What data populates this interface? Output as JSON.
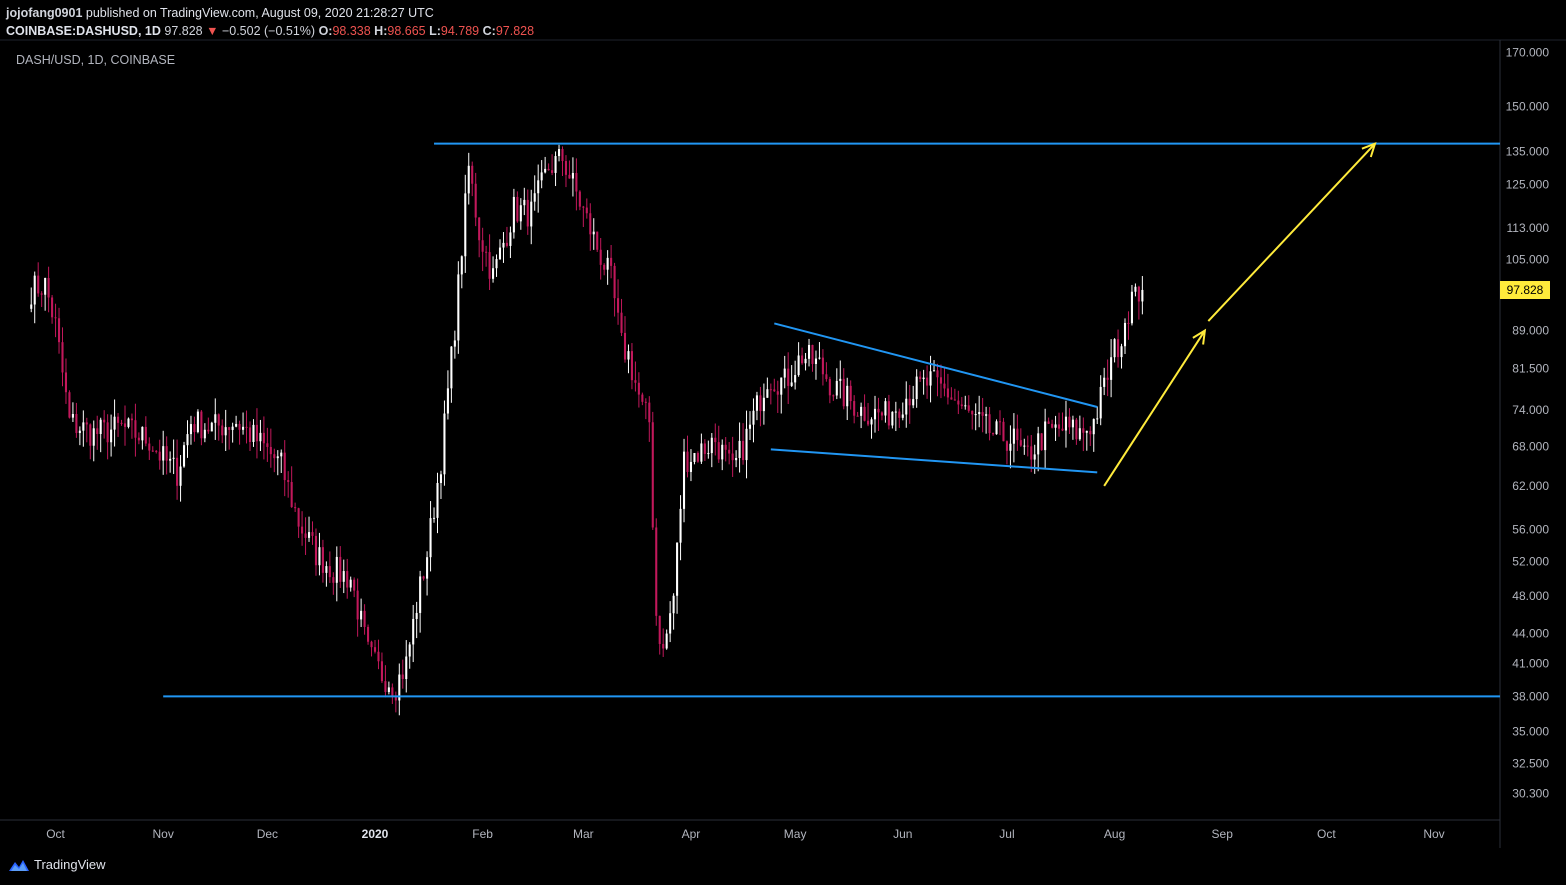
{
  "header": {
    "author": "jojofang0901",
    "published_text": " published on TradingView.com, August 09, 2020 21:28:27 UTC",
    "symbol": "COINBASE:DASHUSD, 1D",
    "last": "97.828",
    "change_arrow": "▼",
    "change": "−0.502 (−0.51%)",
    "o_label": "O:",
    "o_val": "98.338",
    "h_label": "H:",
    "h_val": "98.665",
    "l_label": "L:",
    "l_val": "94.789",
    "c_label": "C:",
    "c_val": "97.828"
  },
  "watermark": "DASH/USD, 1D, COINBASE",
  "brand": "TradingView",
  "colors": {
    "background": "#000000",
    "candle_up": "#ffffff",
    "candle_down": "#c2185b",
    "trendline": "#2196f3",
    "arrow": "#ffeb3b",
    "price_tag": "#ffeb3b",
    "axis_text": "#b2b5be"
  },
  "chart_data": {
    "type": "candlestick",
    "title": "DASH/USD, 1D, COINBASE",
    "y_scale": "log",
    "ylim": [
      28.5,
      175
    ],
    "x_range": [
      "2019-09-15",
      "2020-11-20"
    ],
    "y_ticks": [
      "170.000",
      "150.000",
      "135.000",
      "125.000",
      "113.000",
      "105.000",
      "89.000",
      "81.500",
      "74.000",
      "68.000",
      "62.000",
      "56.000",
      "52.000",
      "48.000",
      "44.000",
      "41.000",
      "38.000",
      "35.000",
      "32.500",
      "30.300"
    ],
    "x_ticks": [
      {
        "label": "Oct",
        "date": "2019-10-01",
        "bold": false
      },
      {
        "label": "Nov",
        "date": "2019-11-01",
        "bold": false
      },
      {
        "label": "Dec",
        "date": "2019-12-01",
        "bold": false
      },
      {
        "label": "2020",
        "date": "2020-01-01",
        "bold": true
      },
      {
        "label": "Feb",
        "date": "2020-02-01",
        "bold": false
      },
      {
        "label": "Mar",
        "date": "2020-03-01",
        "bold": false
      },
      {
        "label": "Apr",
        "date": "2020-04-01",
        "bold": false
      },
      {
        "label": "May",
        "date": "2020-05-01",
        "bold": false
      },
      {
        "label": "Jun",
        "date": "2020-06-01",
        "bold": false
      },
      {
        "label": "Jul",
        "date": "2020-07-01",
        "bold": false
      },
      {
        "label": "Aug",
        "date": "2020-08-01",
        "bold": false
      },
      {
        "label": "Sep",
        "date": "2020-09-01",
        "bold": false
      },
      {
        "label": "Oct",
        "date": "2020-10-01",
        "bold": false
      },
      {
        "label": "Nov",
        "date": "2020-11-01",
        "bold": false
      }
    ],
    "last_price": "97.828",
    "close_series": {
      "start": "2019-09-24",
      "anchors": [
        [
          "2019-09-24",
          98
        ],
        [
          "2019-09-28",
          99
        ],
        [
          "2019-10-01",
          90
        ],
        [
          "2019-10-05",
          72
        ],
        [
          "2019-10-12",
          70
        ],
        [
          "2019-10-20",
          71
        ],
        [
          "2019-10-28",
          69
        ],
        [
          "2019-11-01",
          66
        ],
        [
          "2019-11-05",
          64
        ],
        [
          "2019-11-09",
          72
        ],
        [
          "2019-11-15",
          71
        ],
        [
          "2019-11-22",
          72
        ],
        [
          "2019-11-28",
          69
        ],
        [
          "2019-12-05",
          65
        ],
        [
          "2019-12-10",
          57
        ],
        [
          "2019-12-15",
          53
        ],
        [
          "2019-12-20",
          51
        ],
        [
          "2019-12-25",
          50
        ],
        [
          "2019-12-30",
          42
        ],
        [
          "2020-01-03",
          40
        ],
        [
          "2020-01-07",
          39
        ],
        [
          "2020-01-10",
          41
        ],
        [
          "2020-01-13",
          47
        ],
        [
          "2020-01-16",
          53
        ],
        [
          "2020-01-20",
          66
        ],
        [
          "2020-01-24",
          90
        ],
        [
          "2020-01-28",
          130
        ],
        [
          "2020-01-31",
          112
        ],
        [
          "2020-02-04",
          101
        ],
        [
          "2020-02-10",
          118
        ],
        [
          "2020-02-15",
          117
        ],
        [
          "2020-02-20",
          130
        ],
        [
          "2020-02-24",
          133
        ],
        [
          "2020-02-29",
          120
        ],
        [
          "2020-03-05",
          108
        ],
        [
          "2020-03-09",
          100
        ],
        [
          "2020-03-12",
          86
        ],
        [
          "2020-03-14",
          84
        ],
        [
          "2020-03-18",
          74
        ],
        [
          "2020-03-20",
          72
        ],
        [
          "2020-03-22",
          46
        ],
        [
          "2020-03-24",
          42
        ],
        [
          "2020-03-27",
          48
        ],
        [
          "2020-03-30",
          66
        ],
        [
          "2020-04-03",
          67
        ],
        [
          "2020-04-08",
          69
        ],
        [
          "2020-04-13",
          64
        ],
        [
          "2020-04-18",
          71
        ],
        [
          "2020-04-23",
          80
        ],
        [
          "2020-04-28",
          79
        ],
        [
          "2020-05-03",
          84
        ],
        [
          "2020-05-08",
          82
        ],
        [
          "2020-05-12",
          78
        ],
        [
          "2020-05-16",
          76
        ],
        [
          "2020-05-20",
          74
        ],
        [
          "2020-05-27",
          73
        ],
        [
          "2020-06-03",
          77
        ],
        [
          "2020-06-09",
          79
        ],
        [
          "2020-06-14",
          77
        ],
        [
          "2020-06-20",
          73
        ],
        [
          "2020-06-27",
          70
        ],
        [
          "2020-07-03",
          69
        ],
        [
          "2020-07-06",
          66
        ],
        [
          "2020-07-12",
          70
        ],
        [
          "2020-07-18",
          71
        ],
        [
          "2020-07-22",
          70
        ],
        [
          "2020-07-26",
          72
        ],
        [
          "2020-07-29",
          78
        ],
        [
          "2020-08-01",
          85
        ],
        [
          "2020-08-04",
          88
        ],
        [
          "2020-08-06",
          100
        ],
        [
          "2020-08-09",
          97.828
        ]
      ]
    },
    "annotations": [
      {
        "kind": "hline",
        "price": 137.5,
        "from": "2020-01-18",
        "to": "2020-11-20",
        "color": "#2196f3"
      },
      {
        "kind": "hline",
        "price": 38.0,
        "from": "2019-11-01",
        "to": "2020-11-20",
        "color": "#2196f3"
      },
      {
        "kind": "trendline",
        "from": [
          "2020-04-25",
          90.5
        ],
        "to": [
          "2020-07-27",
          74.5
        ],
        "color": "#2196f3"
      },
      {
        "kind": "trendline",
        "from": [
          "2020-04-24",
          67.5
        ],
        "to": [
          "2020-07-27",
          64.0
        ],
        "color": "#2196f3"
      },
      {
        "kind": "arrow",
        "from": [
          "2020-07-29",
          62.0
        ],
        "to": [
          "2020-08-27",
          89.0
        ],
        "color": "#ffeb3b"
      },
      {
        "kind": "arrow",
        "from": [
          "2020-08-28",
          91.0
        ],
        "to": [
          "2020-10-15",
          137.5
        ],
        "color": "#ffeb3b"
      }
    ]
  }
}
